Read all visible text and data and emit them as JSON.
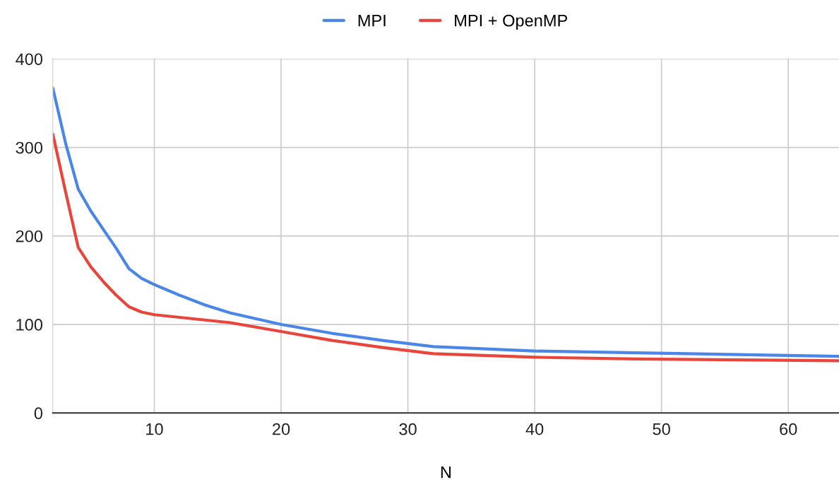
{
  "chart_data": {
    "type": "line",
    "xlabel": "N",
    "x": [
      2,
      3,
      4,
      5,
      6,
      7,
      8,
      9,
      10,
      12,
      14,
      16,
      20,
      24,
      28,
      32,
      40,
      48,
      56,
      64
    ],
    "series": [
      {
        "name": "MPI",
        "color": "#4a86e8",
        "values": [
          367,
          305,
          253,
          228,
          207,
          186,
          163,
          152,
          145,
          133,
          122,
          113,
          100,
          90,
          82,
          75,
          70,
          68,
          66,
          64
        ]
      },
      {
        "name": "MPI + OpenMP",
        "color": "#e8453c",
        "values": [
          315,
          250,
          187,
          165,
          148,
          133,
          120,
          114,
          111,
          108,
          105,
          102,
          92,
          82,
          74,
          67,
          63,
          61,
          60,
          59
        ]
      }
    ],
    "xlim": [
      2,
      64
    ],
    "xticks": [
      10,
      20,
      30,
      40,
      50,
      60
    ],
    "ylim": [
      0,
      400
    ],
    "yticks": [
      0,
      100,
      200,
      300,
      400
    ],
    "grid": true,
    "legend": "top",
    "marker": "none",
    "line_style": "solid"
  }
}
